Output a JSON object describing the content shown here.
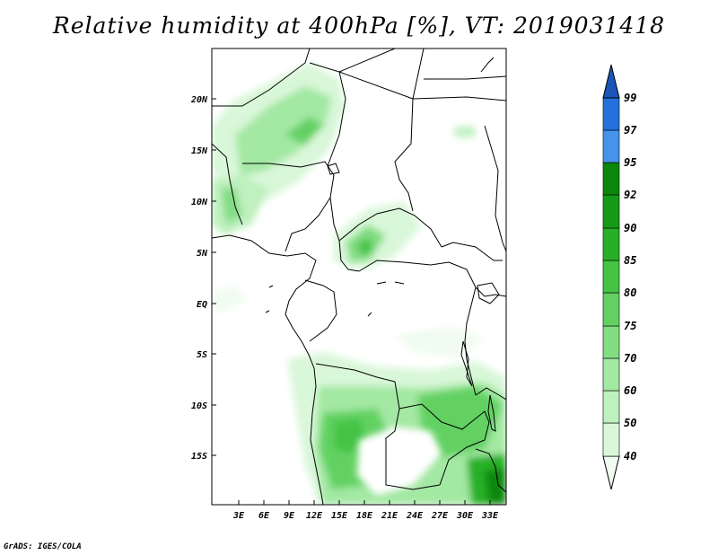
{
  "title": "Relative humidity at 400hPa [%], VT: 2019031418",
  "footer": "GrADS: IGES/COLA",
  "map": {
    "lon_range": [
      0,
      35
    ],
    "lat_range": [
      -20,
      25
    ],
    "lon_ticks": [
      "3E",
      "6E",
      "9E",
      "12E",
      "15E",
      "18E",
      "21E",
      "24E",
      "27E",
      "30E",
      "33E"
    ],
    "lat_ticks": [
      "20N",
      "15N",
      "10N",
      "5N",
      "EQ",
      "5S",
      "10S",
      "15S"
    ]
  },
  "colorbar": {
    "levels": [
      "40",
      "50",
      "60",
      "70",
      "75",
      "80",
      "85",
      "90",
      "92",
      "95",
      "97",
      "99"
    ],
    "colors": [
      "#f0fcf0",
      "#d9f7d9",
      "#bff0bf",
      "#a3e8a3",
      "#83dd83",
      "#62d162",
      "#44c344",
      "#27b027",
      "#159a15",
      "#0b870b",
      "#4593ea",
      "#2470dc",
      "#1a55b8"
    ]
  }
}
